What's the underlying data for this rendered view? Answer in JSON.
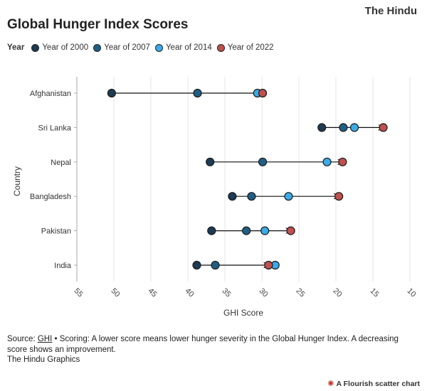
{
  "brand": "The Hindu",
  "title": "Global Hunger Index Scores",
  "legend": {
    "title": "Year",
    "items": [
      {
        "label": "Year of 2000",
        "color": "#1d3b53"
      },
      {
        "label": "Year of 2007",
        "color": "#1f5f86"
      },
      {
        "label": "Year of 2014",
        "color": "#3aabe8"
      },
      {
        "label": "Year of 2022",
        "color": "#c0504d"
      }
    ]
  },
  "chart_data": {
    "type": "scatter",
    "title": "Global Hunger Index Scores",
    "xlabel": "GHI Score",
    "ylabel": "Country",
    "xlim": [
      55,
      10
    ],
    "x_reversed": true,
    "xticks": [
      "55",
      "50",
      "45",
      "40",
      "35",
      "30",
      "25",
      "20",
      "15",
      "10"
    ],
    "categories": [
      "Afghanistan",
      "Sri Lanka",
      "Nepal",
      "Bangladesh",
      "Pakistan",
      "India"
    ],
    "series": [
      {
        "name": "Year of 2000",
        "color": "#1d3b53",
        "values": [
          50.3,
          21.9,
          37.0,
          34.0,
          36.8,
          38.8
        ]
      },
      {
        "name": "Year of 2007",
        "color": "#1f5f86",
        "values": [
          38.7,
          19.0,
          29.9,
          31.4,
          32.1,
          36.3
        ]
      },
      {
        "name": "Year of 2014",
        "color": "#3aabe8",
        "values": [
          30.6,
          17.5,
          21.2,
          26.4,
          29.6,
          28.2
        ]
      },
      {
        "name": "Year of 2022",
        "color": "#c0504d",
        "values": [
          29.9,
          13.6,
          19.1,
          19.6,
          26.1,
          29.1
        ]
      }
    ],
    "grid": true,
    "legend_position": "top-left"
  },
  "footer": {
    "source_label": "Source:",
    "source_link": "GHI",
    "note": "• Scoring: A lower score means lower hunger severity in the Global Hunger Index. A decreasing score shows an improvement.",
    "credit": "The Hindu Graphics",
    "flourish_icon": "flourish-asterisk-icon",
    "flourish": "A Flourish scatter chart"
  }
}
